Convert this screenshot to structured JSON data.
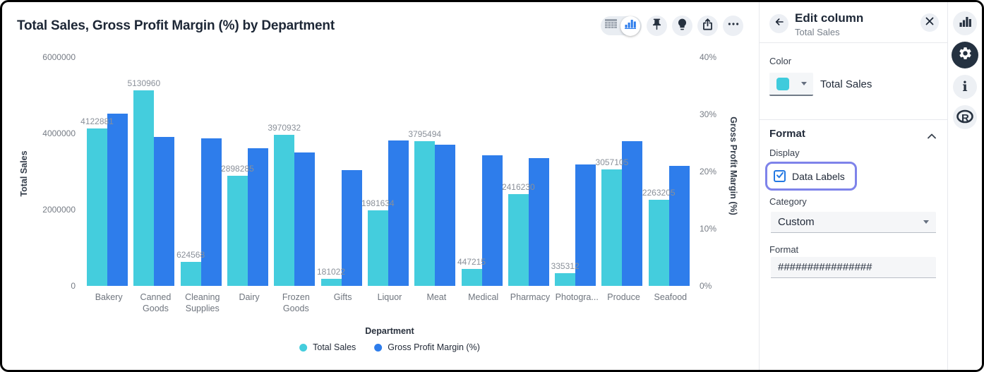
{
  "chart_header": {
    "title": "Total Sales, Gross Profit Margin (%) by Department",
    "toolbar_icons": [
      "table-view-icon",
      "chart-view-icon",
      "pin-icon",
      "lightbulb-icon",
      "share-icon",
      "more-icon"
    ],
    "active_view": "chart"
  },
  "chart_data": {
    "type": "bar",
    "title": "Total Sales, Gross Profit Margin (%) by Department",
    "xlabel": "Department",
    "categories": [
      "Bakery",
      "Canned Goods",
      "Cleaning Supplies",
      "Dairy",
      "Frozen Goods",
      "Gifts",
      "Liquor",
      "Meat",
      "Medical",
      "Pharmacy",
      "Photogra...",
      "Produce",
      "Seafood"
    ],
    "series": [
      {
        "name": "Total Sales",
        "axis": "left",
        "color": "#44cddd",
        "data_labels": true,
        "values": [
          4122881,
          5130960,
          624568,
          2898285,
          3970932,
          181022,
          1981634,
          3795494,
          447215,
          2416230,
          335312,
          3057105,
          2263205
        ]
      },
      {
        "name": "Gross Profit Margin (%)",
        "axis": "right",
        "color": "#2e7deb",
        "data_labels": false,
        "values": [
          30.1,
          26.0,
          25.8,
          24.1,
          23.4,
          20.2,
          25.4,
          24.7,
          22.9,
          22.3,
          21.2,
          25.3,
          21.0
        ]
      }
    ],
    "left_axis": {
      "title": "Total Sales",
      "min": 0,
      "max": 6000000,
      "ticks": [
        0,
        2000000,
        4000000,
        6000000
      ]
    },
    "right_axis": {
      "title": "Gross Profit Margin (%)",
      "min": 0,
      "max": 40,
      "ticks": [
        "0%",
        "10%",
        "20%",
        "30%",
        "40%"
      ]
    },
    "grid": false,
    "legend_position": "bottom"
  },
  "panel": {
    "title": "Edit column",
    "subtitle": "Total Sales",
    "color_section": {
      "label": "Color",
      "series_name": "Total Sales",
      "swatch_color": "#3fcbdc"
    },
    "format_section": {
      "title": "Format",
      "display_label": "Display",
      "data_labels_checkbox": {
        "label": "Data Labels",
        "checked": true
      },
      "category_label": "Category",
      "category_value": "Custom",
      "format_label": "Format",
      "format_value": "################"
    }
  },
  "rail": {
    "icons": [
      "bar-chart-icon",
      "gear-icon",
      "info-icon",
      "r-logo-icon"
    ],
    "active": "gear-icon"
  }
}
